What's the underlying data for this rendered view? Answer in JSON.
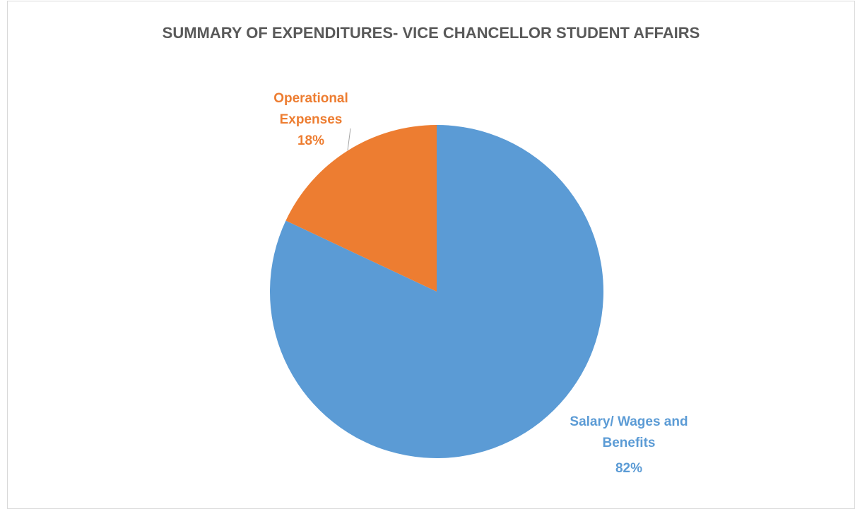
{
  "chart_data": {
    "type": "pie",
    "title": "SUMMARY OF EXPENDITURES- VICE CHANCELLOR STUDENT AFFAIRS",
    "categories": [
      "Salary/ Wages and Benefits",
      "Operational Expenses"
    ],
    "values": [
      82,
      18
    ],
    "value_labels": [
      "82%",
      "18%"
    ],
    "colors": [
      "#5b9bd5",
      "#ed7d31"
    ]
  }
}
